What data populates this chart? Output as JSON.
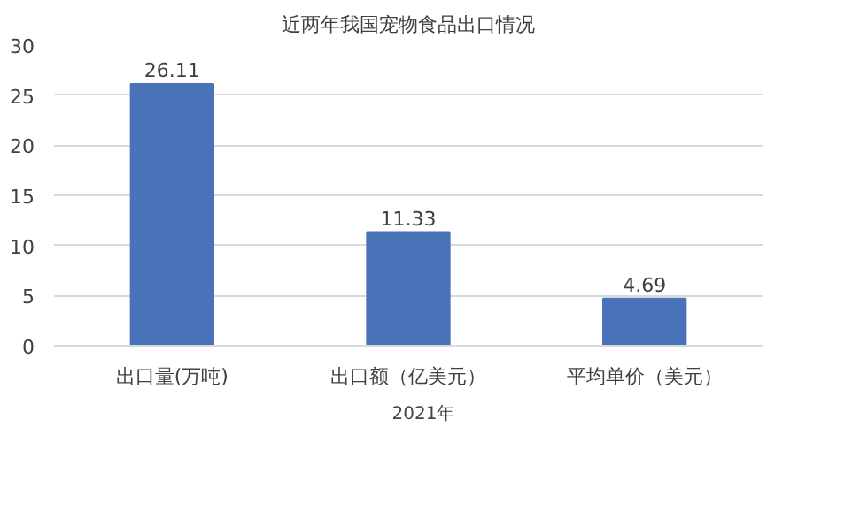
{
  "chart_data": {
    "type": "bar",
    "title": "近两年我国宠物食品出口情况",
    "categories": [
      "出口量(万吨)",
      "出口额（亿美元）",
      "平均单价（美元）"
    ],
    "series": [
      {
        "name": "2021年",
        "color": "#4a72b8",
        "values": [
          26.11,
          11.33,
          4.69
        ]
      }
    ],
    "ylim": [
      0,
      30
    ],
    "yticks": [
      0,
      5,
      10,
      15,
      20,
      25,
      30
    ],
    "grid": "y",
    "data_labels": true,
    "legend": "bottom"
  }
}
